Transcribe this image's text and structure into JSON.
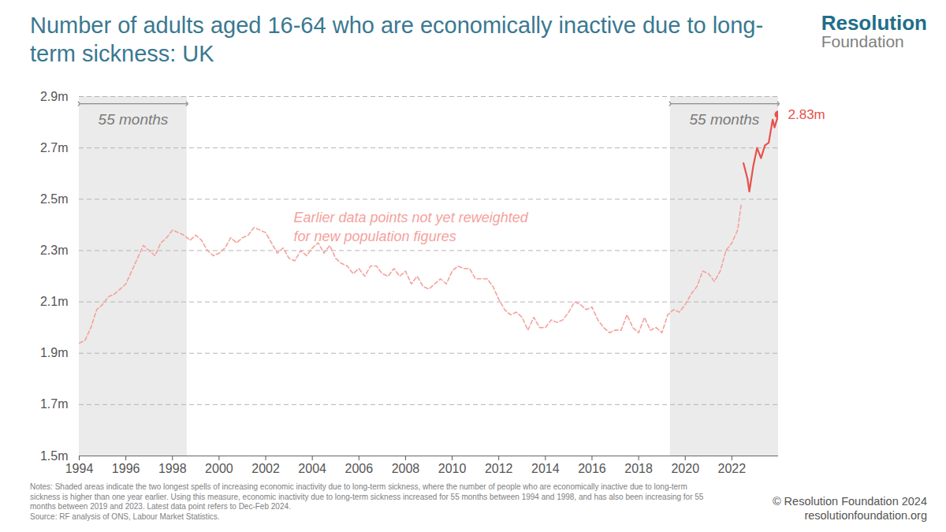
{
  "chart_data": {
    "type": "line",
    "title": "Number of adults aged 16-64 who are economically inactive due to long-term sickness: UK",
    "logo": [
      "Resolution",
      "Foundation"
    ],
    "notes": "Notes: Shaded areas indicate the two longest spells of increasing economic inactivity due to long-term sickness, where the number of people who are economically inactive due to long-term sickness is higher than one year earlier. Using this measure, economic inactivity due to long-term sickness increased for 55 months between 1994 and 1998, and has also been increasing for 55 months between 2019 and 2023. Latest data point refers to Dec-Feb 2024.",
    "source": "Source: RF analysis of ONS, Labour Market Statistics.",
    "copyright": "© Resolution Foundation 2024",
    "website": "resolutionfoundation.org",
    "xlim": [
      1994,
      2024
    ],
    "xticks": [
      1994,
      1996,
      1998,
      2000,
      2002,
      2004,
      2006,
      2008,
      2010,
      2012,
      2014,
      2016,
      2018,
      2020,
      2022
    ],
    "ylim": [
      1.5,
      2.9
    ],
    "yticks": [
      {
        "value": 1.5,
        "label": "1.5m"
      },
      {
        "value": 1.7,
        "label": "1.7m"
      },
      {
        "value": 1.9,
        "label": "1.9m"
      },
      {
        "value": 2.1,
        "label": "2.1m"
      },
      {
        "value": 2.3,
        "label": "2.3m"
      },
      {
        "value": 2.5,
        "label": "2.5m"
      },
      {
        "value": 2.7,
        "label": "2.7m"
      },
      {
        "value": 2.9,
        "label": "2.9m"
      }
    ],
    "grid": true,
    "spans": [
      {
        "x": [
          1994,
          1998.63
        ],
        "label": "55 months"
      },
      {
        "x": [
          2019.36,
          2024
        ],
        "label": "55 months"
      }
    ],
    "series": [
      {
        "color": "#f4a29c",
        "line_style": "dashed",
        "x": [
          1994.0,
          1994.25,
          1994.5,
          1994.75,
          1995.0,
          1995.25,
          1995.5,
          1995.75,
          1996.0,
          1996.25,
          1996.5,
          1996.75,
          1997.0,
          1997.25,
          1997.5,
          1997.75,
          1998.0,
          1998.25,
          1998.5,
          1998.75,
          1999.0,
          1999.25,
          1999.5,
          1999.75,
          2000.0,
          2000.25,
          2000.5,
          2000.75,
          2001.0,
          2001.25,
          2001.5,
          2001.75,
          2002.0,
          2002.25,
          2002.5,
          2002.75,
          2003.0,
          2003.25,
          2003.5,
          2003.75,
          2004.0,
          2004.25,
          2004.5,
          2004.75,
          2005.0,
          2005.25,
          2005.5,
          2005.75,
          2006.0,
          2006.25,
          2006.5,
          2006.75,
          2007.0,
          2007.25,
          2007.5,
          2007.75,
          2008.0,
          2008.25,
          2008.5,
          2008.75,
          2009.0,
          2009.25,
          2009.5,
          2009.75,
          2010.0,
          2010.25,
          2010.5,
          2010.75,
          2011.0,
          2011.25,
          2011.5,
          2011.75,
          2012.0,
          2012.25,
          2012.5,
          2012.75,
          2013.0,
          2013.25,
          2013.5,
          2013.75,
          2014.0,
          2014.25,
          2014.5,
          2014.75,
          2015.0,
          2015.25,
          2015.5,
          2015.75,
          2016.0,
          2016.25,
          2016.5,
          2016.75,
          2017.0,
          2017.25,
          2017.5,
          2017.75,
          2018.0,
          2018.25,
          2018.5,
          2018.75,
          2019.0,
          2019.25,
          2019.5,
          2019.75,
          2020.0,
          2020.25,
          2020.5,
          2020.75,
          2021.0,
          2021.25,
          2021.5,
          2021.75,
          2022.0,
          2022.25,
          2022.4
        ],
        "values": [
          1.94,
          1.95,
          2.0,
          2.07,
          2.09,
          2.12,
          2.13,
          2.15,
          2.17,
          2.22,
          2.27,
          2.32,
          2.3,
          2.28,
          2.33,
          2.35,
          2.38,
          2.37,
          2.36,
          2.34,
          2.36,
          2.34,
          2.3,
          2.28,
          2.29,
          2.31,
          2.35,
          2.33,
          2.35,
          2.36,
          2.39,
          2.38,
          2.37,
          2.33,
          2.29,
          2.31,
          2.27,
          2.26,
          2.3,
          2.28,
          2.31,
          2.33,
          2.29,
          2.32,
          2.27,
          2.25,
          2.24,
          2.21,
          2.23,
          2.2,
          2.24,
          2.24,
          2.21,
          2.2,
          2.23,
          2.2,
          2.22,
          2.17,
          2.2,
          2.16,
          2.15,
          2.17,
          2.19,
          2.17,
          2.22,
          2.24,
          2.23,
          2.23,
          2.19,
          2.19,
          2.19,
          2.16,
          2.11,
          2.07,
          2.05,
          2.06,
          2.04,
          1.99,
          2.04,
          2.0,
          2.0,
          2.03,
          2.02,
          2.03,
          2.06,
          2.1,
          2.09,
          2.07,
          2.08,
          2.03,
          2.0,
          1.98,
          1.99,
          1.99,
          2.05,
          2.0,
          1.98,
          2.04,
          1.99,
          2.0,
          1.98,
          2.05,
          2.07,
          2.06,
          2.09,
          2.13,
          2.16,
          2.22,
          2.21,
          2.18,
          2.22,
          2.3,
          2.33,
          2.38,
          2.48
        ]
      },
      {
        "color": "#e8514b",
        "line_style": "solid",
        "x": [
          2022.5,
          2022.67,
          2022.75,
          2022.92,
          2023.08,
          2023.25,
          2023.42,
          2023.58,
          2023.75,
          2023.83,
          2024.0
        ],
        "values": [
          2.64,
          2.58,
          2.53,
          2.63,
          2.7,
          2.66,
          2.71,
          2.72,
          2.81,
          2.78,
          2.83
        ]
      }
    ],
    "annotations": [
      {
        "text": [
          "Earlier data points not yet reweighted",
          "for new population figures"
        ],
        "x": 2003.2,
        "y": 2.46,
        "color": "#f4a29c"
      },
      {
        "text": "2.83m",
        "x": 2024.0,
        "y": 2.83,
        "color": "#e8514b",
        "marker": "circle"
      }
    ]
  }
}
